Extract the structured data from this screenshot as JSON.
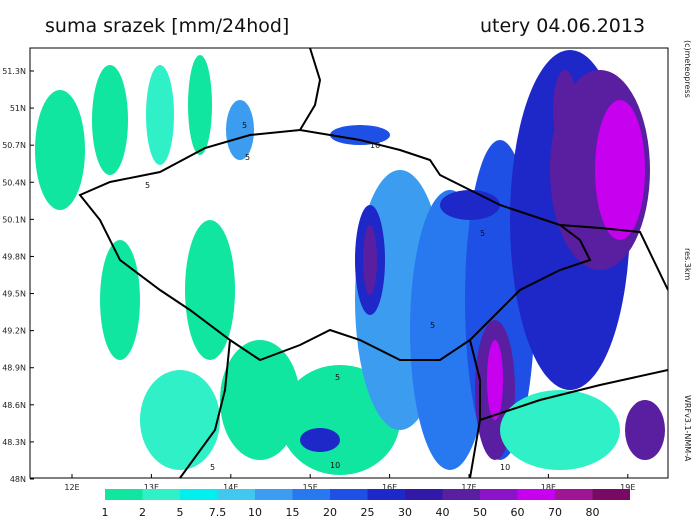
{
  "header": {
    "title": "suma srazek [mm/24hod]",
    "date": "utery 04.06.2013"
  },
  "map": {
    "latitude_labels": [
      "51.3N",
      "51N",
      "50.7N",
      "50.4N",
      "50.1N",
      "49.8N",
      "49.5N",
      "49.2N",
      "48.9N",
      "48.6N",
      "48.3N",
      "48N"
    ],
    "longitude_labels": [
      "12E",
      "13E",
      "14E",
      "15E",
      "16E",
      "17E",
      "18E",
      "19E"
    ],
    "contour_labels": [
      "5",
      "5",
      "5",
      "10",
      "5",
      "10",
      "5",
      "10",
      "5",
      "5"
    ]
  },
  "legend": {
    "values": [
      1,
      2,
      5,
      7.5,
      10,
      15,
      20,
      25,
      30,
      40,
      50,
      60,
      70,
      80
    ],
    "colors": [
      "#10e6a0",
      "#30f0c8",
      "#00f0f0",
      "#40c8f0",
      "#3c9cf0",
      "#2878f0",
      "#1e50e6",
      "#1e28c8",
      "#3218a8",
      "#5a1ea0",
      "#8c14c8",
      "#c800f0",
      "#a01496",
      "#780a64"
    ]
  },
  "credits": {
    "copyright": "(c)meteopress",
    "resolution": "res.3km",
    "model": "WRFv3.1-NMM-A"
  }
}
